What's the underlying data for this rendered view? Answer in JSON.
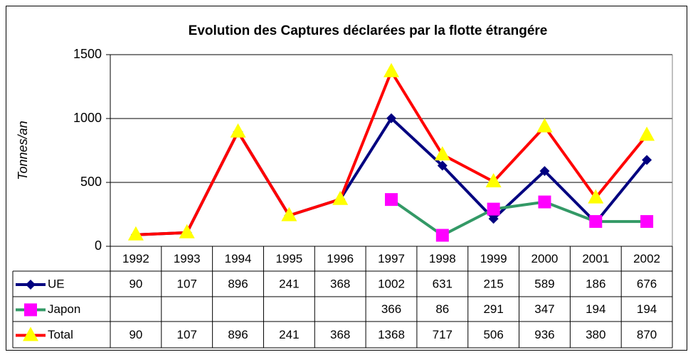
{
  "chart_data": {
    "type": "line",
    "title": "Evolution des Captures déclarées par la flotte  étrangére",
    "y_label": "Tonnes/an",
    "categories": [
      "1992",
      "1993",
      "1994",
      "1995",
      "1996",
      "1997",
      "1998",
      "1999",
      "2000",
      "2001",
      "2002"
    ],
    "series": [
      {
        "name": "UE",
        "color": "#000080",
        "marker": "diamond",
        "marker_color": "#000080",
        "values": [
          90,
          107,
          896,
          241,
          368,
          1002,
          631,
          215,
          589,
          186,
          676
        ]
      },
      {
        "name": "Japon",
        "color": "#339966",
        "marker": "square",
        "marker_color": "#ff00ff",
        "values": [
          null,
          null,
          null,
          null,
          null,
          366,
          86,
          291,
          347,
          194,
          194
        ]
      },
      {
        "name": "Total",
        "color": "#ff0000",
        "marker": "triangle",
        "marker_color": "#ffff00",
        "values": [
          90,
          107,
          896,
          241,
          368,
          1368,
          717,
          506,
          936,
          380,
          870
        ]
      }
    ],
    "ylim": [
      0,
      1500
    ],
    "yticks": [
      0,
      500,
      1000,
      1500
    ],
    "grid": true
  }
}
